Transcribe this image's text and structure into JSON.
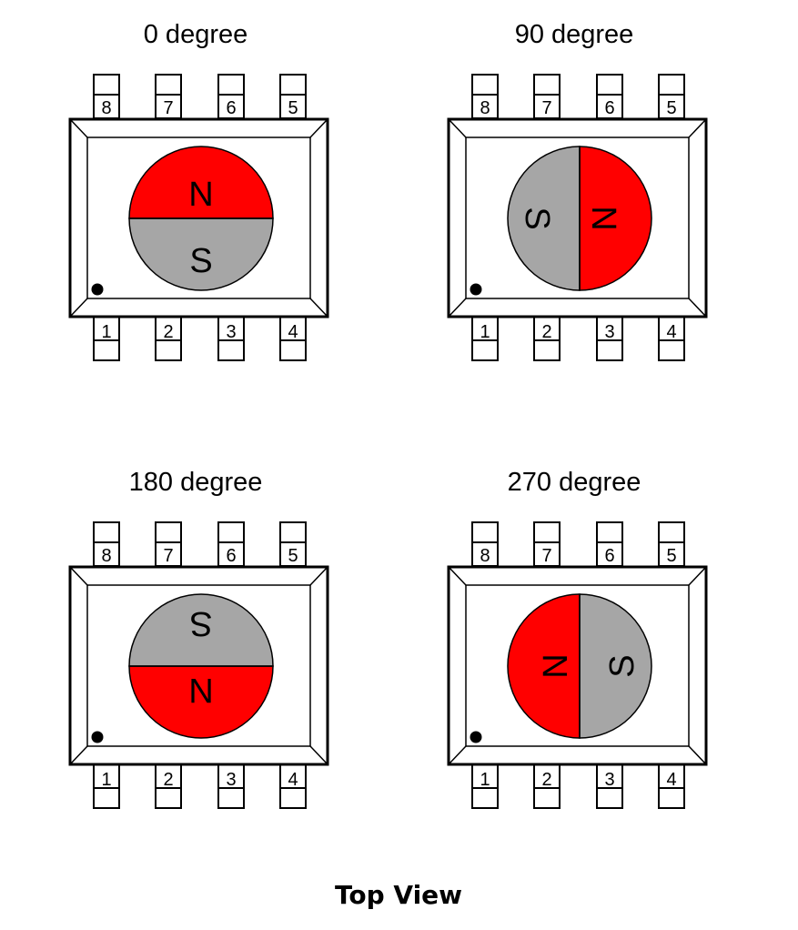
{
  "diagram": {
    "caption": "Top View",
    "top_pins": [
      "8",
      "7",
      "6",
      "5"
    ],
    "bottom_pins": [
      "1",
      "2",
      "3",
      "4"
    ],
    "colors": {
      "north": "#ff0000",
      "south": "#a6a6a6",
      "outline": "#000000"
    },
    "panels": [
      {
        "title": "0 degree",
        "rotation_deg": 0,
        "north_label": "N",
        "south_label": "S"
      },
      {
        "title": "90 degree",
        "rotation_deg": 90,
        "north_label": "N",
        "south_label": "S"
      },
      {
        "title": "180 degree",
        "rotation_deg": 180,
        "north_label": "N",
        "south_label": "S"
      },
      {
        "title": "270 degree",
        "rotation_deg": 270,
        "north_label": "N",
        "south_label": "S"
      }
    ]
  }
}
